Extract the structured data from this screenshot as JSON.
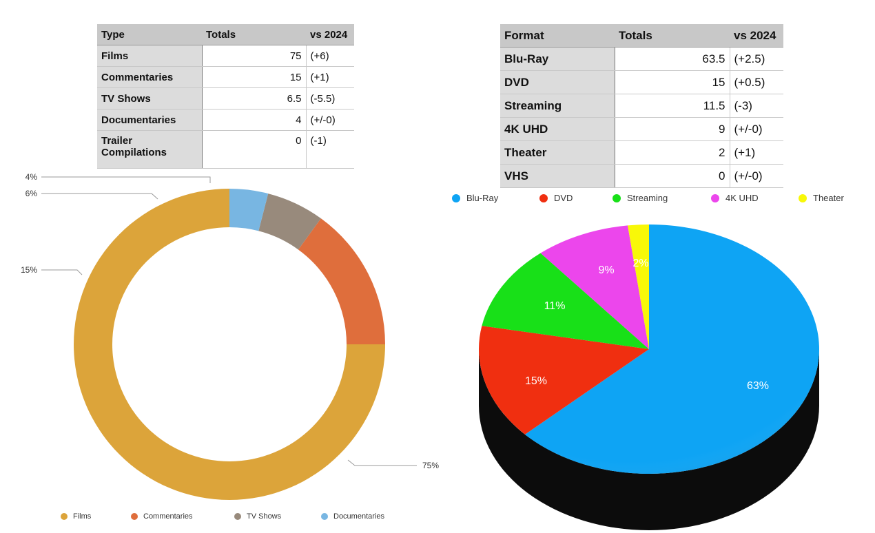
{
  "type_table": {
    "headers": [
      "Type",
      "Totals",
      "vs 2024"
    ],
    "rows": [
      {
        "label": "Films",
        "total": "75",
        "delta": "(+6)"
      },
      {
        "label": "Commentaries",
        "total": "15",
        "delta": "(+1)"
      },
      {
        "label": "TV Shows",
        "total": "6.5",
        "delta": "(-5.5)"
      },
      {
        "label": "Documentaries",
        "total": "4",
        "delta": "(+/-0)"
      },
      {
        "label": "Trailer Compilations",
        "total": "0",
        "delta": "(-1)"
      }
    ]
  },
  "format_table": {
    "headers": [
      "Format",
      "Totals",
      "vs 2024"
    ],
    "rows": [
      {
        "label": "Blu-Ray",
        "total": "63.5",
        "delta": "(+2.5)"
      },
      {
        "label": "DVD",
        "total": "15",
        "delta": "(+0.5)"
      },
      {
        "label": "Streaming",
        "total": "11.5",
        "delta": "(-3)"
      },
      {
        "label": "4K UHD",
        "total": "9",
        "delta": "(+/-0)"
      },
      {
        "label": "Theater",
        "total": "2",
        "delta": "(+1)"
      },
      {
        "label": "VHS",
        "total": "0",
        "delta": "(+/-0)"
      }
    ]
  },
  "chart_data": [
    {
      "type": "pie",
      "variant": "donut",
      "legend_position": "bottom",
      "categories": [
        "Films",
        "Commentaries",
        "TV Shows",
        "Documentaries"
      ],
      "values": [
        75,
        15,
        6,
        4
      ],
      "labels": [
        "75%",
        "15%",
        "6%",
        "4%"
      ],
      "colors": [
        "#dca43a",
        "#df6e3c",
        "#988a7c",
        "#78b6e2"
      ]
    },
    {
      "type": "pie",
      "variant": "3d",
      "legend_position": "top",
      "categories": [
        "Blu-Ray",
        "DVD",
        "Streaming",
        "4K UHD",
        "Theater"
      ],
      "values": [
        63,
        15,
        11,
        9,
        2
      ],
      "labels": [
        "63%",
        "15%",
        "11%",
        "9%",
        "2%"
      ],
      "colors": [
        "#0ea4f4",
        "#f02f10",
        "#18e018",
        "#ec46ec",
        "#f8f808"
      ]
    }
  ]
}
